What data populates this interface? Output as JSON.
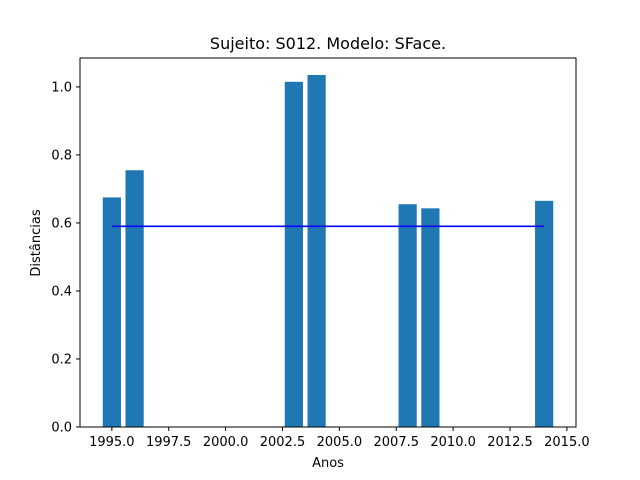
{
  "chart_data": {
    "type": "bar",
    "title": "Sujeito: S012. Modelo: SFace.",
    "xlabel": "Anos",
    "ylabel": "Distâncias",
    "xlim": [
      1993.6,
      2015.4
    ],
    "ylim": [
      0.0,
      1.085
    ],
    "xticks": [
      1995.0,
      1997.5,
      2000.0,
      2002.5,
      2005.0,
      2007.5,
      2010.0,
      2012.5,
      2015.0
    ],
    "xtick_labels": [
      "1995.0",
      "1997.5",
      "2000.0",
      "2002.5",
      "2005.0",
      "2007.5",
      "2010.0",
      "2012.5",
      "2015.0"
    ],
    "yticks": [
      0.0,
      0.2,
      0.4,
      0.6,
      0.8,
      1.0
    ],
    "ytick_labels": [
      "0.0",
      "0.2",
      "0.4",
      "0.6",
      "0.8",
      "1.0"
    ],
    "bar_width": 0.8,
    "bar_color": "#1f77b4",
    "x": [
      1995,
      1996,
      2003,
      2004,
      2008,
      2009,
      2014
    ],
    "values": [
      0.675,
      0.755,
      1.015,
      1.035,
      0.655,
      0.643,
      0.665
    ],
    "reference_line": {
      "y": 0.59,
      "x_start": 1995,
      "x_end": 2014,
      "color": "#0000ff"
    },
    "grid": false,
    "legend": "none"
  }
}
